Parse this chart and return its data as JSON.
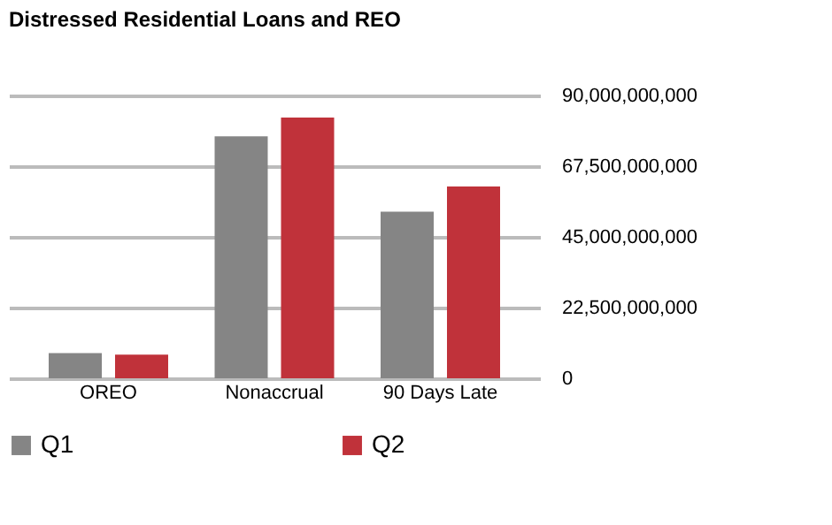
{
  "chart_data": {
    "type": "bar",
    "title": "Distressed Residential Loans and REO",
    "categories": [
      "OREO",
      "Nonaccrual",
      "90 Days Late"
    ],
    "series": [
      {
        "name": "Q1",
        "color": "#858585",
        "values": [
          8000000000,
          77000000000,
          53000000000
        ]
      },
      {
        "name": "Q2",
        "color": "#c0323a",
        "values": [
          7500000000,
          83000000000,
          61000000000
        ]
      }
    ],
    "ylim": [
      0,
      90000000000
    ],
    "yticks": [
      0,
      {
        "value": 22500000000,
        "label": "22,500,000,000"
      },
      {
        "value": 45000000000,
        "label": "45,000,000,000"
      },
      {
        "value": 67500000000,
        "label": "67,500,000,000"
      },
      {
        "value": 90000000000,
        "label": "90,000,000,000"
      }
    ],
    "grid": "y",
    "legend": "bottom"
  }
}
